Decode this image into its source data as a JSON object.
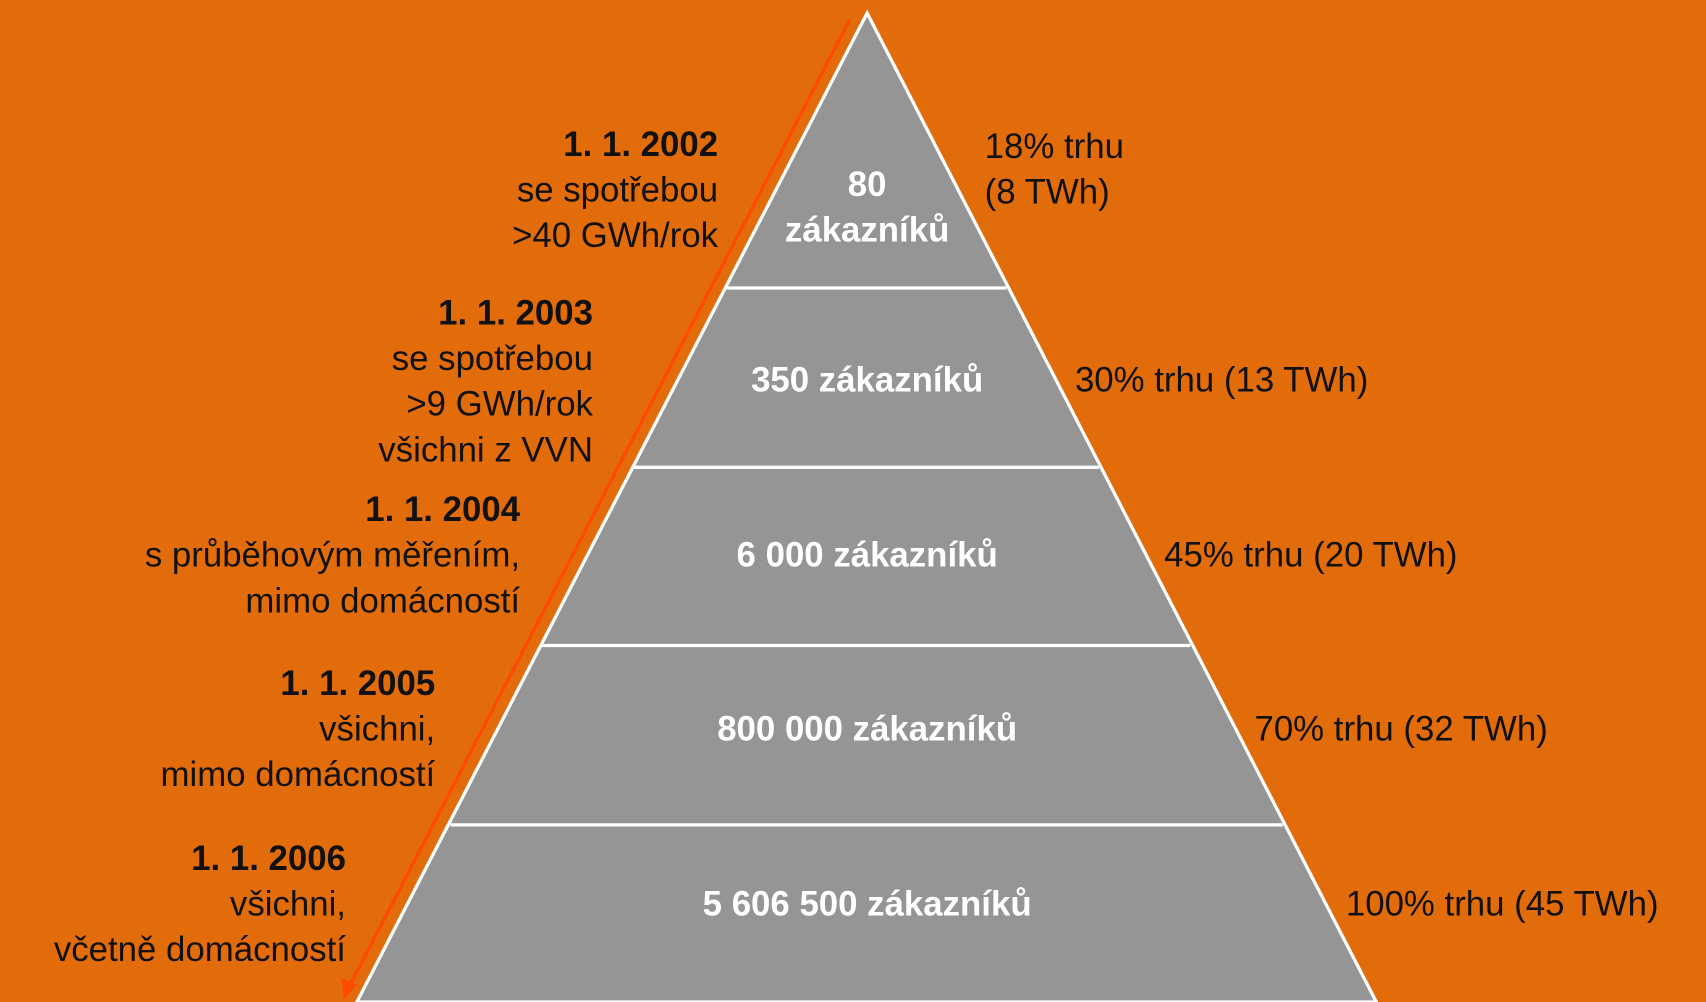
{
  "levels": [
    {
      "date": "1. 1. 2002",
      "description": [
        "se spotřebou",
        ">40 GWh/rok"
      ],
      "customers": [
        "80",
        "zákazníků"
      ],
      "market": [
        "18% trhu",
        "(8 TWh)"
      ]
    },
    {
      "date": "1. 1. 2003",
      "description": [
        "se spotřebou",
        ">9 GWh/rok",
        "všichni z VVN"
      ],
      "customers": [
        "350 zákazníků"
      ],
      "market": [
        "30% trhu (13 TWh)"
      ]
    },
    {
      "date": "1. 1. 2004",
      "description": [
        "s průběhovým měřením,",
        "mimo domácností"
      ],
      "customers": [
        "6 000 zákazníků"
      ],
      "market": [
        "45% trhu (20 TWh)"
      ]
    },
    {
      "date": "1. 1. 2005",
      "description": [
        "všichni,",
        "mimo domácností"
      ],
      "customers": [
        "800 000 zákazníků"
      ],
      "market": [
        "70% trhu (32 TWh)"
      ]
    },
    {
      "date": "1. 1. 2006",
      "description": [
        "všichni,",
        "včetně domácností"
      ],
      "customers": [
        "5 606 500 zákazníků"
      ],
      "market": [
        "100% trhu (45 TWh)"
      ]
    }
  ]
}
